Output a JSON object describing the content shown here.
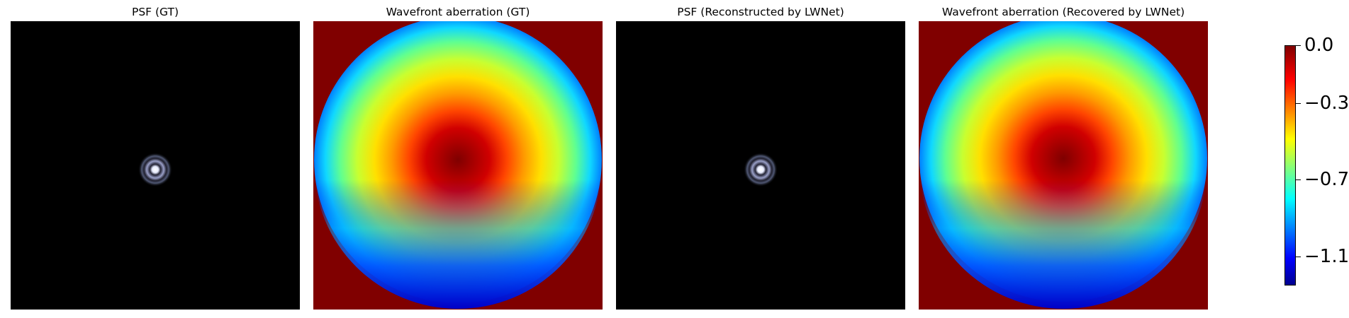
{
  "panels": [
    {
      "title": "PSF (GT)",
      "kind": "psf"
    },
    {
      "title": "Wavefront aberration (GT)",
      "kind": "wavefront"
    },
    {
      "title": "PSF (Reconstructed by LWNet)",
      "kind": "psf"
    },
    {
      "title": "Wavefront aberration (Recovered by LWNet)",
      "kind": "wavefront"
    }
  ],
  "colorbar": {
    "colormap": "jet",
    "range": [
      -1.25,
      0.0
    ],
    "ticks": [
      {
        "value": 0.0,
        "label": "0.0"
      },
      {
        "value": -0.3,
        "label": "−0.3"
      },
      {
        "value": -0.7,
        "label": "−0.7"
      },
      {
        "value": -1.1,
        "label": "−1.1"
      }
    ]
  },
  "colors": {
    "background_outside_pupil": "#800000",
    "psf_background": "#000000"
  }
}
